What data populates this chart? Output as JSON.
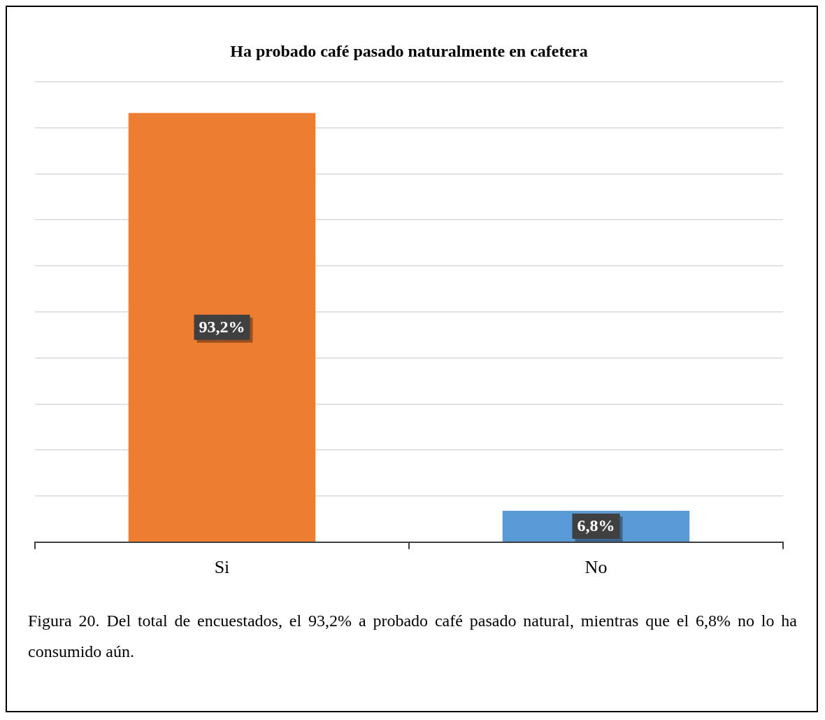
{
  "chart_data": {
    "type": "bar",
    "title": "Ha probado café pasado naturalmente en cafetera",
    "categories": [
      "Si",
      "No"
    ],
    "values": [
      93.2,
      6.8
    ],
    "colors": [
      "#ed7d31",
      "#5b9bd5"
    ],
    "value_labels": [
      "93,2%",
      "6,8%"
    ],
    "ylim": [
      0,
      100
    ],
    "yticks": [
      {
        "value": 0,
        "label": null
      },
      {
        "value": 10,
        "label": null
      },
      {
        "value": 20,
        "label": null
      },
      {
        "value": 30,
        "label": null
      },
      {
        "value": 40,
        "label": null
      },
      {
        "value": 50,
        "label": null
      },
      {
        "value": 60,
        "label": null
      },
      {
        "value": 70,
        "label": null
      },
      {
        "value": 80,
        "label": null
      },
      {
        "value": 90,
        "label": null
      },
      {
        "value": 100,
        "label": null
      }
    ],
    "grid": "y",
    "tick_labels": "x",
    "legend": false,
    "annotations": [
      "Figura 20. Del total de encuestados, el 93,2% a probado café pasado natural, mientras que el 6,8% no lo ha consumido aún."
    ]
  }
}
